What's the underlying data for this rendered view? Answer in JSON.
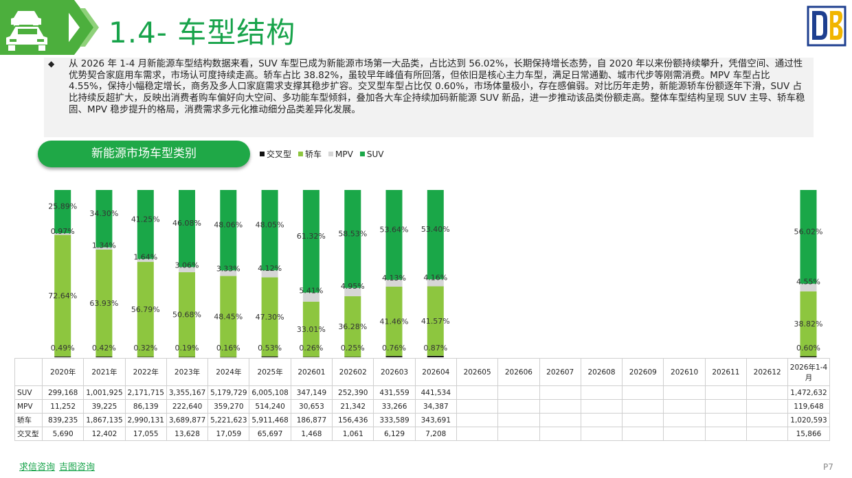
{
  "header": {
    "title": "1.4- 车型结构",
    "logo_icon": "db-logo-icon",
    "car_icon": "cars-icon"
  },
  "summary": {
    "text": "从 2026 年 1-4 月新能源车型结构数据来看，SUV 车型已成为新能源市场第一大品类，占比达到 56.02%，长期保持增长态势，自 2020 年以来份额持续攀升，凭借空间、通过性优势契合家庭用车需求，市场认可度持续走高。轿车占比 38.82%，虽较早年峰值有所回落，但依旧是核心主力车型，满足日常通勤、城市代步等刚需消费。MPV 车型占比 4.55%，保持小幅稳定增长，商务及多人口家庭需求支撑其稳步扩容。交叉型车型占比仅 0.60%，市场体量极小，存在感偏弱。对比历年走势，新能源轿车份额逐年下滑，SUV 占比持续反超扩大，反映出消费者购车偏好向大空间、多功能车型倾斜，叠加各大车企持续加码新能源 SUV 新品，进一步推动该品类份额走高。整体车型结构呈现 SUV 主导、轿车稳固、MPV 稳步提升的格局，消费需求多元化推动细分品类差异化发展。"
  },
  "section_title": "新能源市场车型类别",
  "colors": {
    "suv": "#1aa748",
    "mpv": "#d6d6d6",
    "sedan": "#8dc63f",
    "crossover": "#111111",
    "accent": "#17a34a"
  },
  "chart_data": {
    "type": "bar",
    "stacked": true,
    "normalized": true,
    "legend_position": "top",
    "categories": [
      "2020年",
      "2021年",
      "2022年",
      "2023年",
      "2024年",
      "2025年",
      "202601",
      "202602",
      "202603",
      "202604",
      "202605",
      "202606",
      "202607",
      "202608",
      "202609",
      "202610",
      "202611",
      "202612",
      "2026年1-4月"
    ],
    "series": [
      {
        "name": "交叉型",
        "key": "crossover",
        "pct_labels": [
          "0.49%",
          "0.42%",
          "0.32%",
          "0.19%",
          "0.16%",
          "0.53%",
          "0.26%",
          "0.25%",
          "0.76%",
          "0.87%",
          "",
          "",
          "",
          "",
          "",
          "",
          "",
          "",
          "0.60%"
        ],
        "values": [
          0.49,
          0.42,
          0.32,
          0.19,
          0.16,
          0.53,
          0.26,
          0.25,
          0.76,
          0.87,
          null,
          null,
          null,
          null,
          null,
          null,
          null,
          null,
          0.6
        ]
      },
      {
        "name": "轿车",
        "key": "sedan",
        "pct_labels": [
          "72.64%",
          "63.93%",
          "56.79%",
          "50.68%",
          "48.45%",
          "47.30%",
          "33.01%",
          "36.28%",
          "41.46%",
          "41.57%",
          "",
          "",
          "",
          "",
          "",
          "",
          "",
          "",
          "38.82%"
        ],
        "values": [
          72.64,
          63.93,
          56.79,
          50.68,
          48.45,
          47.3,
          33.01,
          36.28,
          41.46,
          41.57,
          null,
          null,
          null,
          null,
          null,
          null,
          null,
          null,
          38.82
        ]
      },
      {
        "name": "MPV",
        "key": "mpv",
        "pct_labels": [
          "0.97%",
          "1.34%",
          "1.64%",
          "3.06%",
          "3.33%",
          "4.12%",
          "5.41%",
          "4.95%",
          "4.13%",
          "4.16%",
          "",
          "",
          "",
          "",
          "",
          "",
          "",
          "",
          "4.55%"
        ],
        "values": [
          0.97,
          1.34,
          1.64,
          3.06,
          3.33,
          4.12,
          5.41,
          4.95,
          4.13,
          4.16,
          null,
          null,
          null,
          null,
          null,
          null,
          null,
          null,
          4.55
        ]
      },
      {
        "name": "SUV",
        "key": "suv",
        "pct_labels": [
          "25.89%",
          "34.30%",
          "41.25%",
          "46.08%",
          "48.06%",
          "48.05%",
          "61.32%",
          "58.53%",
          "53.64%",
          "53.40%",
          "",
          "",
          "",
          "",
          "",
          "",
          "",
          "",
          "56.02%"
        ],
        "values": [
          25.89,
          34.3,
          41.25,
          46.08,
          48.06,
          48.05,
          61.32,
          58.53,
          53.64,
          53.4,
          null,
          null,
          null,
          null,
          null,
          null,
          null,
          null,
          56.02
        ]
      }
    ],
    "legend_order": [
      "crossover",
      "sedan",
      "mpv",
      "suv"
    ],
    "table": {
      "rows": [
        {
          "label": "SUV",
          "values": [
            "299,168",
            "1,001,925",
            "2,171,715",
            "3,355,167",
            "5,179,729",
            "6,005,108",
            "347,149",
            "252,390",
            "431,559",
            "441,534",
            "",
            "",
            "",
            "",
            "",
            "",
            "",
            "",
            "1,472,632"
          ]
        },
        {
          "label": "MPV",
          "values": [
            "11,252",
            "39,225",
            "86,139",
            "222,640",
            "359,270",
            "514,240",
            "30,653",
            "21,342",
            "33,266",
            "34,387",
            "",
            "",
            "",
            "",
            "",
            "",
            "",
            "",
            "119,648"
          ]
        },
        {
          "label": "轿车",
          "values": [
            "839,235",
            "1,867,135",
            "2,990,131",
            "3,689,877",
            "5,221,623",
            "5,911,468",
            "186,877",
            "156,436",
            "333,589",
            "343,691",
            "",
            "",
            "",
            "",
            "",
            "",
            "",
            "",
            "1,020,593"
          ]
        },
        {
          "label": "交叉型",
          "values": [
            "5,690",
            "12,402",
            "17,055",
            "13,628",
            "17,059",
            "65,697",
            "1,468",
            "1,061",
            "6,129",
            "7,208",
            "",
            "",
            "",
            "",
            "",
            "",
            "",
            "",
            "15,866"
          ]
        }
      ]
    }
  },
  "footer": {
    "link1": "求信咨询",
    "link2": "吉图咨询",
    "page": "P7"
  }
}
